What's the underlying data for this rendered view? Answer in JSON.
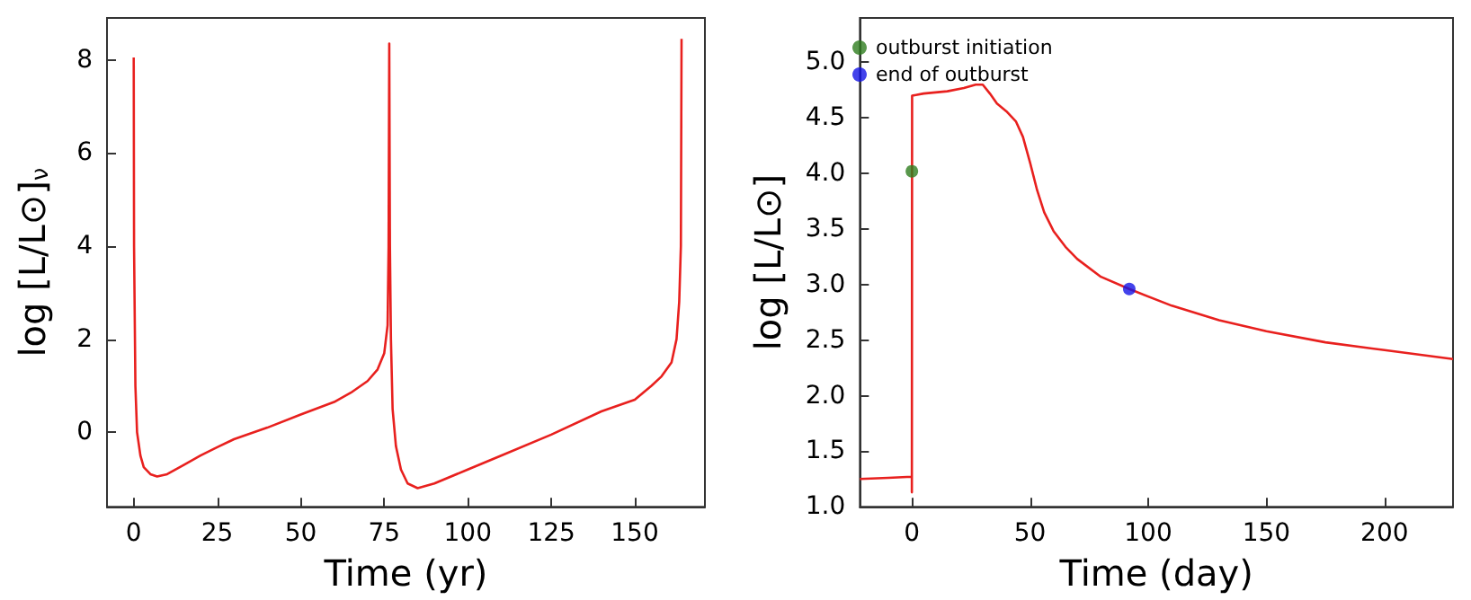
{
  "chart_data": [
    {
      "type": "line",
      "xlabel": "Time (yr)",
      "ylabel": "log [L/L⊙]$_{ν}$",
      "xlim": [
        -8,
        171
      ],
      "ylim": [
        -1.6,
        8.9
      ],
      "xticks": [
        0,
        25,
        50,
        75,
        100,
        125,
        150
      ],
      "yticks": [
        0,
        2,
        4,
        6,
        8
      ],
      "grid": false,
      "legend": false,
      "series": [
        {
          "color": "#e8201e",
          "marker": "none",
          "x": [
            0,
            0.1,
            0.5,
            1,
            2,
            3,
            5,
            7,
            10,
            15,
            20,
            25,
            30,
            40,
            50,
            60,
            65,
            70,
            73,
            75,
            76,
            76.3,
            76.5,
            76.7,
            77,
            77.5,
            78.5,
            80,
            82,
            85,
            90,
            100,
            110,
            125,
            140,
            150,
            155,
            158,
            161,
            162.5,
            163.3,
            163.8,
            164
          ],
          "values": [
            8.05,
            4,
            1,
            0,
            -0.5,
            -0.75,
            -0.9,
            -0.95,
            -0.9,
            -0.7,
            -0.5,
            -0.32,
            -0.15,
            0.1,
            0.38,
            0.65,
            0.85,
            1.1,
            1.35,
            1.7,
            2.3,
            4,
            8.35,
            4,
            2,
            0.5,
            -0.3,
            -0.8,
            -1.1,
            -1.2,
            -1.1,
            -0.8,
            -0.5,
            -0.05,
            0.45,
            0.7,
            1.0,
            1.2,
            1.5,
            2.0,
            2.8,
            4,
            8.45
          ]
        }
      ]
    },
    {
      "type": "line",
      "xlabel": "Time (day)",
      "ylabel": "log [L/L⊙]",
      "xlim": [
        -22,
        229
      ],
      "ylim": [
        1.0,
        5.4
      ],
      "xticks": [
        0,
        50,
        100,
        150,
        200
      ],
      "yticks": [
        {
          "value": 1,
          "label": "1.0"
        },
        1.5,
        {
          "value": 2,
          "label": "2.0"
        },
        2.5,
        {
          "value": 3,
          "label": "3.0"
        },
        3.5,
        {
          "value": 4,
          "label": "4.0"
        },
        4.5,
        {
          "value": 5,
          "label": "5.0"
        }
      ],
      "grid": false,
      "legend": "top left",
      "series": [
        {
          "color": "#e8201e",
          "marker": "none",
          "x": [
            -22,
            -10,
            0,
            0,
            0.1,
            5,
            15,
            22,
            27,
            30,
            33,
            36,
            40,
            44,
            47,
            50,
            53,
            56,
            60,
            65,
            70,
            80,
            92,
            110,
            130,
            150,
            175,
            200,
            229
          ],
          "values": [
            1.25,
            1.26,
            1.27,
            1.13,
            4.7,
            4.72,
            4.74,
            4.77,
            4.8,
            4.8,
            4.72,
            4.63,
            4.56,
            4.47,
            4.33,
            4.1,
            3.85,
            3.65,
            3.48,
            3.34,
            3.23,
            3.07,
            2.96,
            2.81,
            2.68,
            2.58,
            2.48,
            2.41,
            2.33
          ]
        },
        {
          "type": "scatter",
          "name": "outburst initiation",
          "color": "#2e7d1e",
          "marker": "circle",
          "x": [
            0
          ],
          "values": [
            4.02
          ]
        },
        {
          "type": "scatter",
          "name": "end of outburst",
          "color": "#1414e6",
          "marker": "circle",
          "x": [
            92
          ],
          "values": [
            2.96
          ]
        }
      ]
    }
  ]
}
